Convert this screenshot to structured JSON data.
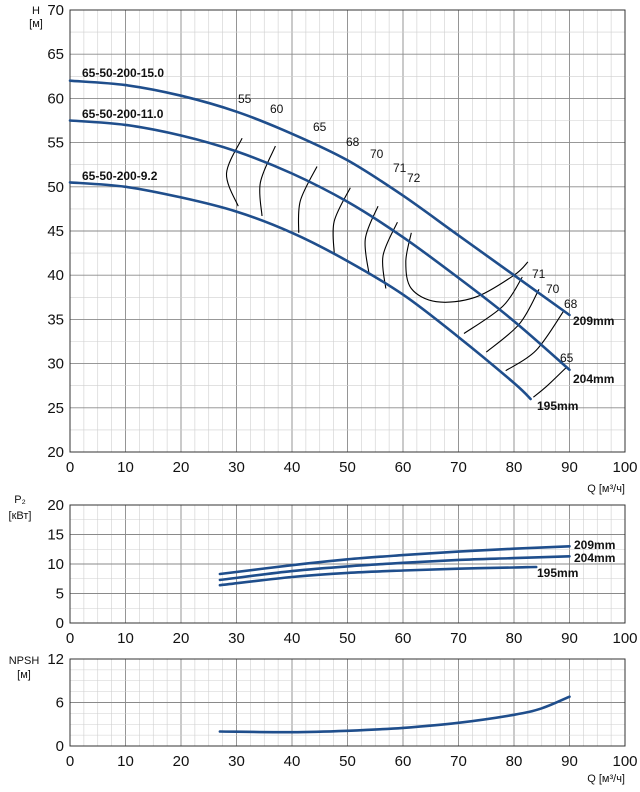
{
  "colors": {
    "curve": "#1f4e8c",
    "efficiency": "#000000",
    "grid_major": "#8a8a8a",
    "grid_minor": "#cfcfcf"
  },
  "chart_data": [
    {
      "id": "head",
      "type": "line",
      "ylabel_top": "H",
      "ylabel_bottom": "[м]",
      "xlabel": "Q [м³/ч]",
      "xlim": [
        0,
        100
      ],
      "ylim": [
        20,
        70
      ],
      "xticks": [
        0,
        10,
        20,
        30,
        40,
        50,
        60,
        70,
        80,
        90,
        100
      ],
      "yticks": [
        20,
        25,
        30,
        35,
        40,
        45,
        50,
        55,
        60,
        65,
        70
      ],
      "grid": true,
      "series": [
        {
          "name": "65-50-200-15.0",
          "label_end": "209mm",
          "x": [
            0,
            10,
            20,
            30,
            40,
            50,
            60,
            70,
            80,
            90
          ],
          "y": [
            62.0,
            61.5,
            60.3,
            58.5,
            56.0,
            53.0,
            49.0,
            44.5,
            40.0,
            35.5
          ]
        },
        {
          "name": "65-50-200-11.0",
          "label_end": "204mm",
          "x": [
            0,
            10,
            20,
            30,
            40,
            50,
            60,
            70,
            80,
            90
          ],
          "y": [
            57.5,
            57.0,
            55.8,
            54.0,
            51.5,
            48.3,
            44.3,
            39.7,
            34.8,
            29.3
          ]
        },
        {
          "name": "65-50-200-9.2",
          "label_end": "195mm",
          "x": [
            0,
            10,
            20,
            30,
            40,
            50,
            60,
            70,
            80,
            83
          ],
          "y": [
            50.5,
            50.0,
            48.8,
            47.2,
            44.8,
            41.6,
            37.8,
            33.0,
            27.8,
            26.0
          ]
        }
      ],
      "efficiency_labels": [
        "55",
        "60",
        "65",
        "68",
        "70",
        "71",
        "72",
        "71",
        "70",
        "68",
        "65"
      ],
      "efficiency_contours": [
        {
          "label": "55",
          "x": [
            31,
            28.2,
            30.3
          ],
          "y": [
            55.5,
            51.5,
            47.8
          ]
        },
        {
          "label": "60",
          "x": [
            37,
            34.3,
            34.6
          ],
          "y": [
            54.6,
            50.5,
            46.7
          ]
        },
        {
          "label": "65",
          "x": [
            44.5,
            41.5,
            41.2
          ],
          "y": [
            52.3,
            48.4,
            44.8
          ]
        },
        {
          "label": "68",
          "x": [
            50.5,
            47.6,
            47.6
          ],
          "y": [
            49.9,
            46.1,
            42.5
          ]
        },
        {
          "label": "70",
          "x": [
            55.5,
            53.2,
            53.9
          ],
          "y": [
            47.8,
            44.1,
            40.1
          ]
        },
        {
          "label": "71",
          "x": [
            59.0,
            56.4,
            56.9
          ],
          "y": [
            46.0,
            42.2,
            38.5
          ]
        },
        {
          "label": "72",
          "x": [
            61.5,
            60.5,
            61.5,
            66,
            73,
            80,
            82.5
          ],
          "y": [
            44.8,
            41.5,
            38.5,
            37.0,
            37.5,
            40.0,
            41.5
          ]
        },
        {
          "label": "71",
          "x": [
            81.5,
            78,
            71
          ],
          "y": [
            39.8,
            36.5,
            33.4
          ]
        },
        {
          "label": "70",
          "x": [
            84.5,
            81,
            75
          ],
          "y": [
            38.4,
            34.5,
            31.3
          ]
        },
        {
          "label": "68",
          "x": [
            89,
            84,
            78.5
          ],
          "y": [
            36.0,
            31.5,
            29.2
          ]
        },
        {
          "label": "65",
          "x": [
            89.5,
            86,
            83.5
          ],
          "y": [
            29.6,
            27.5,
            26.2
          ]
        }
      ]
    },
    {
      "id": "power",
      "type": "line",
      "ylabel_top": "P₂",
      "ylabel_bottom": "[кВт]",
      "xlabel": "",
      "xlim": [
        0,
        100
      ],
      "ylim": [
        0,
        20
      ],
      "xticks": [
        0,
        10,
        20,
        30,
        40,
        50,
        60,
        70,
        80,
        90,
        100
      ],
      "yticks": [
        0,
        5,
        10,
        15,
        20
      ],
      "grid": true,
      "series": [
        {
          "name": "209mm",
          "x": [
            27,
            40,
            50,
            60,
            70,
            80,
            90
          ],
          "y": [
            8.3,
            9.8,
            10.8,
            11.5,
            12.1,
            12.6,
            13.0
          ]
        },
        {
          "name": "204mm",
          "x": [
            27,
            40,
            50,
            60,
            70,
            80,
            90
          ],
          "y": [
            7.3,
            8.8,
            9.6,
            10.2,
            10.7,
            11.0,
            11.3
          ]
        },
        {
          "name": "195mm",
          "x": [
            27,
            40,
            50,
            60,
            70,
            80,
            84
          ],
          "y": [
            6.4,
            7.8,
            8.5,
            8.9,
            9.2,
            9.4,
            9.5
          ]
        }
      ]
    },
    {
      "id": "npsh",
      "type": "line",
      "ylabel_top": "NPSH",
      "ylabel_bottom": "[м]",
      "xlabel": "Q [м³/ч]",
      "xlim": [
        0,
        100
      ],
      "ylim": [
        0,
        12
      ],
      "xticks": [
        0,
        10,
        20,
        30,
        40,
        50,
        60,
        70,
        80,
        90,
        100
      ],
      "yticks": [
        0,
        6,
        12
      ],
      "grid": true,
      "series": [
        {
          "x": [
            27,
            40,
            50,
            60,
            70,
            80,
            85,
            90
          ],
          "y": [
            2.0,
            1.9,
            2.1,
            2.5,
            3.2,
            4.3,
            5.2,
            6.8
          ]
        }
      ]
    }
  ]
}
